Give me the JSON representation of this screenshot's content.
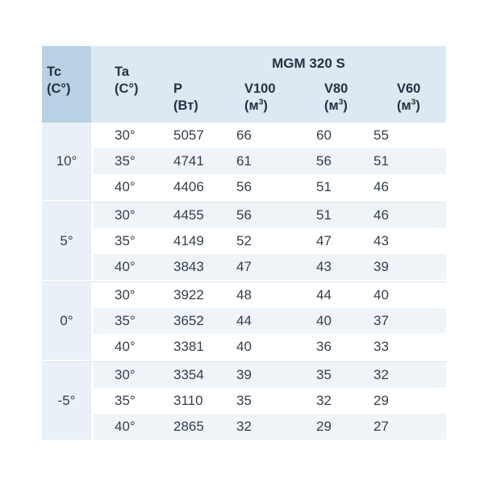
{
  "chart_data": {
    "type": "table",
    "title": "MGM 320 S",
    "column_headers": [
      {
        "label": "Tc",
        "unit": "(C°)"
      },
      {
        "label": "Ta",
        "unit": "(C°)"
      },
      {
        "label": "P",
        "unit": "(Вт)"
      },
      {
        "label": "V100",
        "unit": "(м3)"
      },
      {
        "label": "V80",
        "unit": "(м3)"
      },
      {
        "label": "V60",
        "unit": "(м3)"
      }
    ],
    "unit_m3": {
      "open": "(м",
      "sup": "3",
      "close": ")"
    },
    "groups": [
      {
        "tc": "10°",
        "rows": [
          [
            "30°",
            "5057",
            "66",
            "60",
            "55"
          ],
          [
            "35°",
            "4741",
            "61",
            "56",
            "51"
          ],
          [
            "40°",
            "4406",
            "56",
            "51",
            "46"
          ]
        ]
      },
      {
        "tc": "5°",
        "rows": [
          [
            "30°",
            "4455",
            "56",
            "51",
            "46"
          ],
          [
            "35°",
            "4149",
            "52",
            "47",
            "43"
          ],
          [
            "40°",
            "3843",
            "47",
            "43",
            "39"
          ]
        ]
      },
      {
        "tc": "0°",
        "rows": [
          [
            "30°",
            "3922",
            "48",
            "44",
            "40"
          ],
          [
            "35°",
            "3652",
            "44",
            "40",
            "37"
          ],
          [
            "40°",
            "3381",
            "40",
            "36",
            "33"
          ]
        ]
      },
      {
        "tc": "-5°",
        "rows": [
          [
            "30°",
            "3354",
            "39",
            "35",
            "32"
          ],
          [
            "35°",
            "3110",
            "35",
            "32",
            "29"
          ],
          [
            "40°",
            "2865",
            "32",
            "29",
            "27"
          ]
        ]
      }
    ]
  },
  "colors": {
    "header_dark": "#b8d1e4",
    "header_light": "#dce9f4",
    "stripe": "#eff4f9",
    "tc_column": "#e9f0f7",
    "divider": "#d9e3ed",
    "text": "#333e4b",
    "heading_text": "#25313f"
  }
}
